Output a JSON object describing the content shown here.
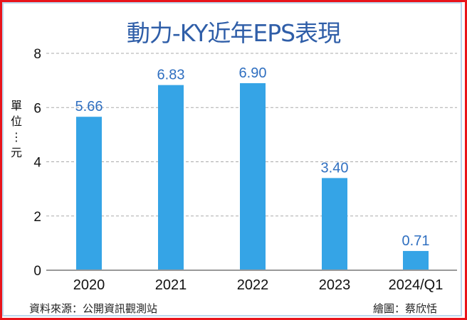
{
  "chart_data": {
    "type": "bar",
    "title": "動力-KY近年EPS表現",
    "ylabel": "單位：元",
    "xlabel": "",
    "categories": [
      "2020",
      "2021",
      "2022",
      "2023",
      "2024/Q1"
    ],
    "values": [
      5.66,
      6.83,
      6.9,
      3.4,
      0.71
    ],
    "data_labels": [
      "5.66",
      "6.83",
      "6.90",
      "3.40",
      "0.71"
    ],
    "ylim": [
      0,
      8
    ],
    "yticks": [
      0,
      2,
      4,
      6,
      8
    ],
    "grid": true,
    "bar_color": "#35a4e6",
    "label_color": "#2f6fc0",
    "title_color": "#2f5ea8"
  },
  "footer": {
    "source": "資料來源：公開資訊觀測站",
    "credit": "繪圖：蔡欣恬"
  }
}
